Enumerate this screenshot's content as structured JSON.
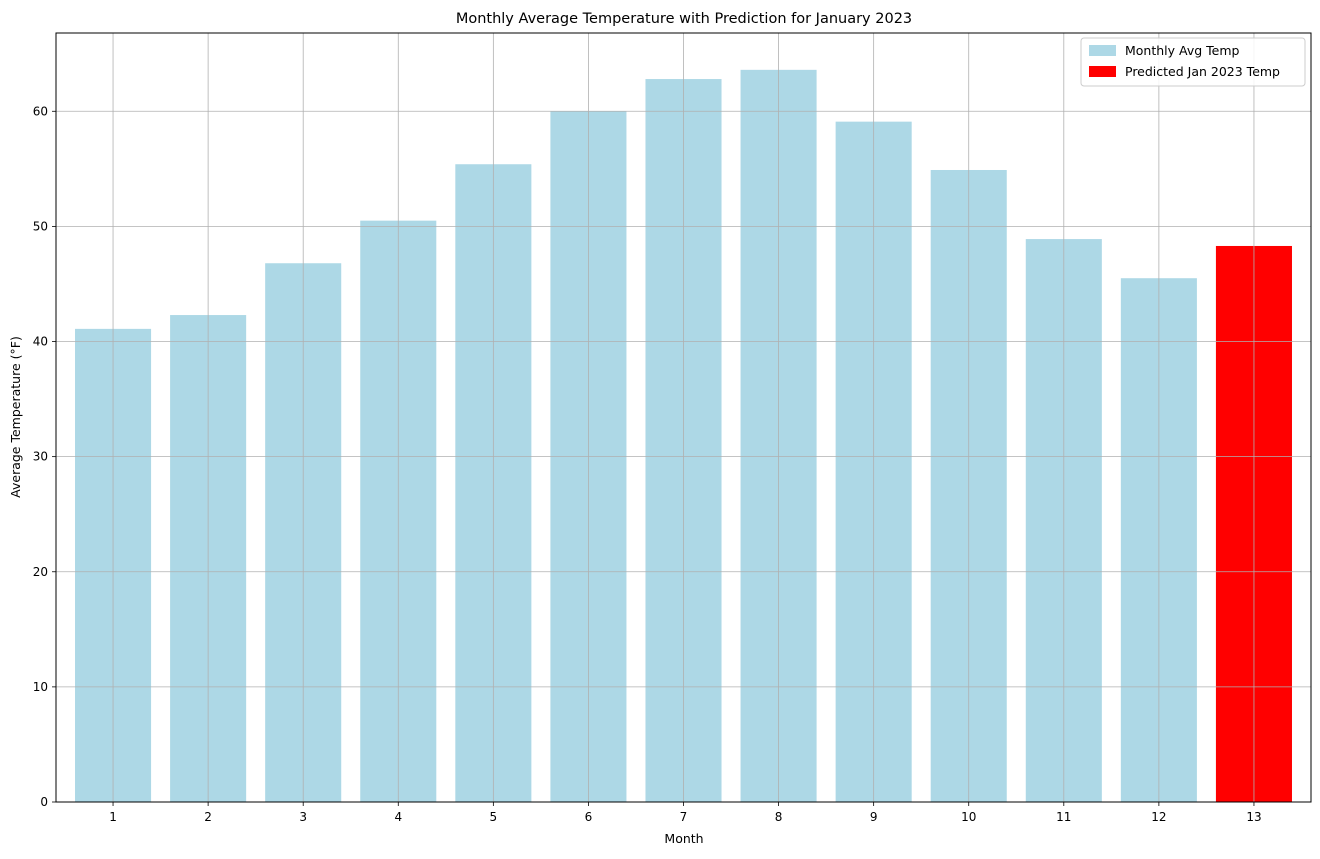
{
  "chart_data": {
    "type": "bar",
    "title": "Monthly Average Temperature with Prediction for January 2023",
    "xlabel": "Month",
    "ylabel": "Average Temperature (°F)",
    "categories": [
      "1",
      "2",
      "3",
      "4",
      "5",
      "6",
      "7",
      "8",
      "9",
      "10",
      "11",
      "12",
      "13"
    ],
    "ylim": [
      0,
      66.8
    ],
    "yticks": [
      0,
      10,
      20,
      30,
      40,
      50,
      60
    ],
    "grid": true,
    "legend_position": "top-right",
    "series": [
      {
        "name": "Monthly Avg Temp",
        "color": "#add8e6",
        "x": [
          "1",
          "2",
          "3",
          "4",
          "5",
          "6",
          "7",
          "8",
          "9",
          "10",
          "11",
          "12"
        ],
        "values": [
          41.1,
          42.3,
          46.8,
          50.5,
          55.4,
          60.0,
          62.8,
          63.6,
          59.1,
          54.9,
          48.9,
          45.5
        ]
      },
      {
        "name": "Predicted Jan 2023 Temp",
        "color": "#ff0000",
        "x": [
          "13"
        ],
        "values": [
          48.3
        ]
      }
    ]
  }
}
